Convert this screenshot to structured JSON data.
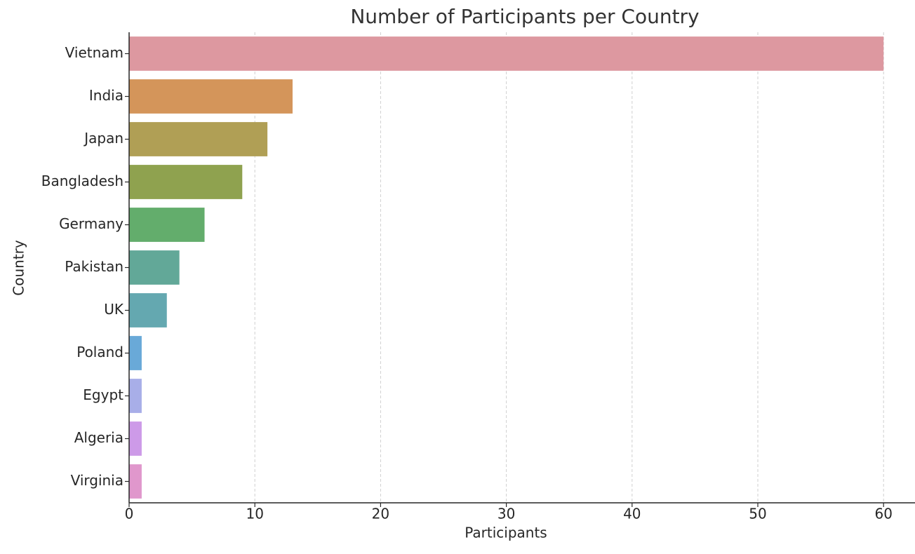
{
  "chart_data": {
    "type": "barh",
    "title": "Number of Participants per Country",
    "xlabel": "Participants",
    "ylabel": "Country",
    "categories": [
      "Vietnam",
      "India",
      "Japan",
      "Bangladesh",
      "Germany",
      "Pakistan",
      "UK",
      "Poland",
      "Egypt",
      "Algeria",
      "Virginia"
    ],
    "values": [
      60,
      13,
      11,
      9,
      6,
      4,
      3,
      1,
      1,
      1,
      1
    ],
    "colors": [
      "#dd98a0",
      "#d4955a",
      "#b09f55",
      "#8fa24f",
      "#63ad6c",
      "#62a898",
      "#64a8b0",
      "#69a9d8",
      "#a8aee8",
      "#cd9ae8",
      "#e097cc"
    ],
    "xlim": [
      0,
      62.5
    ],
    "xticks": [
      0,
      10,
      20,
      30,
      40,
      50,
      60
    ],
    "grid": true
  }
}
